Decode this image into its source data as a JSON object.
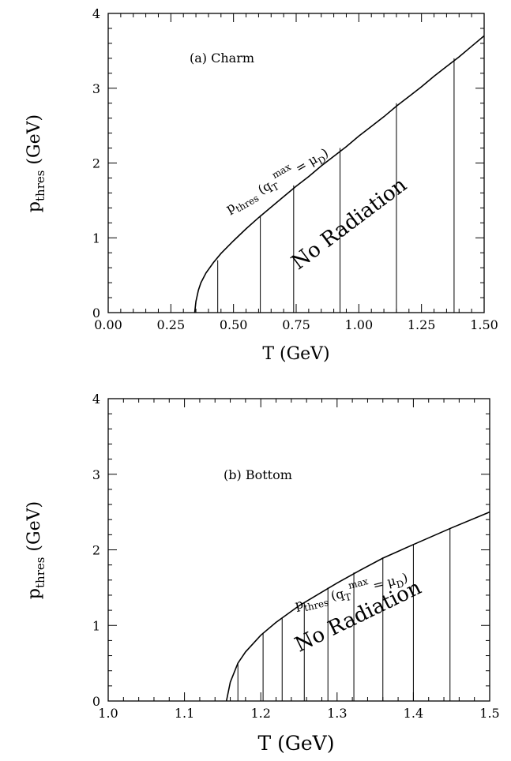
{
  "chart_data": [
    {
      "type": "line",
      "panel_label": "(a) Charm",
      "xlabel": "T (GeV)",
      "ylabel": "p_thres (GeV)",
      "xlim": [
        0.0,
        1.5
      ],
      "ylim": [
        0,
        4
      ],
      "x_ticks": [
        "0.00",
        "0.25",
        "0.50",
        "0.75",
        "1.00",
        "1.25",
        "1.50"
      ],
      "y_ticks": [
        "0",
        "1",
        "2",
        "3",
        "4"
      ],
      "curve_label": "p_thres (q_T^max = μ_D)",
      "region_label": "No Radiation",
      "series": [
        {
          "x": [
            0.345,
            0.35,
            0.36,
            0.37,
            0.39,
            0.42,
            0.45,
            0.5,
            0.55,
            0.6,
            0.65,
            0.7,
            0.75,
            0.8,
            0.85,
            0.9,
            0.95,
            1.0,
            1.05,
            1.1,
            1.15,
            1.2,
            1.25,
            1.3,
            1.35,
            1.4,
            1.45,
            1.5
          ],
          "y": [
            0.0,
            0.15,
            0.3,
            0.4,
            0.53,
            0.67,
            0.79,
            0.96,
            1.12,
            1.27,
            1.41,
            1.55,
            1.69,
            1.82,
            1.96,
            2.09,
            2.22,
            2.36,
            2.49,
            2.62,
            2.76,
            2.89,
            3.02,
            3.16,
            3.29,
            3.42,
            3.56,
            3.7
          ]
        }
      ],
      "vertical_lines": [
        {
          "x": 0.437,
          "y": 0.7
        },
        {
          "x": 0.607,
          "y": 1.3
        },
        {
          "x": 0.74,
          "y": 1.7
        },
        {
          "x": 0.925,
          "y": 2.2
        },
        {
          "x": 1.15,
          "y": 2.8
        },
        {
          "x": 1.38,
          "y": 3.4
        }
      ]
    },
    {
      "type": "line",
      "panel_label": "(b) Bottom",
      "xlabel": "T (GeV)",
      "ylabel": "p_thres (GeV)",
      "xlim": [
        1.0,
        1.5
      ],
      "ylim": [
        0,
        4
      ],
      "x_ticks": [
        "1.0",
        "1.1",
        "1.2",
        "1.3",
        "1.4",
        "1.5"
      ],
      "y_ticks": [
        "0",
        "1",
        "2",
        "3",
        "4"
      ],
      "curve_label": "p_thres (q_T^max = μ_D)",
      "region_label": "No Radiation",
      "series": [
        {
          "x": [
            1.155,
            1.16,
            1.17,
            1.18,
            1.2,
            1.22,
            1.25,
            1.28,
            1.3,
            1.33,
            1.36,
            1.4,
            1.45,
            1.5
          ],
          "y": [
            0.0,
            0.25,
            0.5,
            0.65,
            0.87,
            1.04,
            1.26,
            1.44,
            1.56,
            1.73,
            1.89,
            2.07,
            2.29,
            2.5
          ]
        }
      ],
      "vertical_lines": [
        {
          "x": 1.17,
          "y": 0.5
        },
        {
          "x": 1.203,
          "y": 0.9
        },
        {
          "x": 1.228,
          "y": 1.1
        },
        {
          "x": 1.257,
          "y": 1.3
        },
        {
          "x": 1.288,
          "y": 1.5
        },
        {
          "x": 1.322,
          "y": 1.7
        },
        {
          "x": 1.36,
          "y": 1.9
        },
        {
          "x": 1.4,
          "y": 2.07
        },
        {
          "x": 1.448,
          "y": 2.28
        }
      ]
    }
  ]
}
